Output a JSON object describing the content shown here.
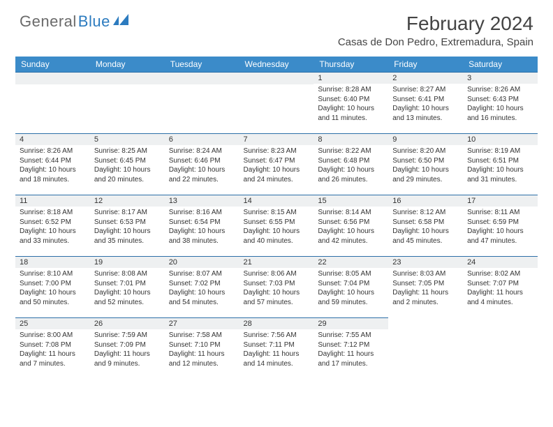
{
  "logo": {
    "part1": "General",
    "part2": "Blue"
  },
  "title": "February 2024",
  "location": "Casas de Don Pedro, Extremadura, Spain",
  "colors": {
    "header_bg": "#3b8bc9",
    "header_text": "#ffffff",
    "daynum_bg": "#eef0f1",
    "daynum_border": "#2c6fa8",
    "text": "#333333",
    "logo_gray": "#6a6a6a",
    "logo_blue": "#2c7bbf"
  },
  "weekdays": [
    "Sunday",
    "Monday",
    "Tuesday",
    "Wednesday",
    "Thursday",
    "Friday",
    "Saturday"
  ],
  "leading_blanks": 4,
  "days": [
    {
      "n": 1,
      "sunrise": "8:28 AM",
      "sunset": "6:40 PM",
      "daylight": "10 hours and 11 minutes."
    },
    {
      "n": 2,
      "sunrise": "8:27 AM",
      "sunset": "6:41 PM",
      "daylight": "10 hours and 13 minutes."
    },
    {
      "n": 3,
      "sunrise": "8:26 AM",
      "sunset": "6:43 PM",
      "daylight": "10 hours and 16 minutes."
    },
    {
      "n": 4,
      "sunrise": "8:26 AM",
      "sunset": "6:44 PM",
      "daylight": "10 hours and 18 minutes."
    },
    {
      "n": 5,
      "sunrise": "8:25 AM",
      "sunset": "6:45 PM",
      "daylight": "10 hours and 20 minutes."
    },
    {
      "n": 6,
      "sunrise": "8:24 AM",
      "sunset": "6:46 PM",
      "daylight": "10 hours and 22 minutes."
    },
    {
      "n": 7,
      "sunrise": "8:23 AM",
      "sunset": "6:47 PM",
      "daylight": "10 hours and 24 minutes."
    },
    {
      "n": 8,
      "sunrise": "8:22 AM",
      "sunset": "6:48 PM",
      "daylight": "10 hours and 26 minutes."
    },
    {
      "n": 9,
      "sunrise": "8:20 AM",
      "sunset": "6:50 PM",
      "daylight": "10 hours and 29 minutes."
    },
    {
      "n": 10,
      "sunrise": "8:19 AM",
      "sunset": "6:51 PM",
      "daylight": "10 hours and 31 minutes."
    },
    {
      "n": 11,
      "sunrise": "8:18 AM",
      "sunset": "6:52 PM",
      "daylight": "10 hours and 33 minutes."
    },
    {
      "n": 12,
      "sunrise": "8:17 AM",
      "sunset": "6:53 PM",
      "daylight": "10 hours and 35 minutes."
    },
    {
      "n": 13,
      "sunrise": "8:16 AM",
      "sunset": "6:54 PM",
      "daylight": "10 hours and 38 minutes."
    },
    {
      "n": 14,
      "sunrise": "8:15 AM",
      "sunset": "6:55 PM",
      "daylight": "10 hours and 40 minutes."
    },
    {
      "n": 15,
      "sunrise": "8:14 AM",
      "sunset": "6:56 PM",
      "daylight": "10 hours and 42 minutes."
    },
    {
      "n": 16,
      "sunrise": "8:12 AM",
      "sunset": "6:58 PM",
      "daylight": "10 hours and 45 minutes."
    },
    {
      "n": 17,
      "sunrise": "8:11 AM",
      "sunset": "6:59 PM",
      "daylight": "10 hours and 47 minutes."
    },
    {
      "n": 18,
      "sunrise": "8:10 AM",
      "sunset": "7:00 PM",
      "daylight": "10 hours and 50 minutes."
    },
    {
      "n": 19,
      "sunrise": "8:08 AM",
      "sunset": "7:01 PM",
      "daylight": "10 hours and 52 minutes."
    },
    {
      "n": 20,
      "sunrise": "8:07 AM",
      "sunset": "7:02 PM",
      "daylight": "10 hours and 54 minutes."
    },
    {
      "n": 21,
      "sunrise": "8:06 AM",
      "sunset": "7:03 PM",
      "daylight": "10 hours and 57 minutes."
    },
    {
      "n": 22,
      "sunrise": "8:05 AM",
      "sunset": "7:04 PM",
      "daylight": "10 hours and 59 minutes."
    },
    {
      "n": 23,
      "sunrise": "8:03 AM",
      "sunset": "7:05 PM",
      "daylight": "11 hours and 2 minutes."
    },
    {
      "n": 24,
      "sunrise": "8:02 AM",
      "sunset": "7:07 PM",
      "daylight": "11 hours and 4 minutes."
    },
    {
      "n": 25,
      "sunrise": "8:00 AM",
      "sunset": "7:08 PM",
      "daylight": "11 hours and 7 minutes."
    },
    {
      "n": 26,
      "sunrise": "7:59 AM",
      "sunset": "7:09 PM",
      "daylight": "11 hours and 9 minutes."
    },
    {
      "n": 27,
      "sunrise": "7:58 AM",
      "sunset": "7:10 PM",
      "daylight": "11 hours and 12 minutes."
    },
    {
      "n": 28,
      "sunrise": "7:56 AM",
      "sunset": "7:11 PM",
      "daylight": "11 hours and 14 minutes."
    },
    {
      "n": 29,
      "sunrise": "7:55 AM",
      "sunset": "7:12 PM",
      "daylight": "11 hours and 17 minutes."
    }
  ],
  "labels": {
    "sunrise": "Sunrise:",
    "sunset": "Sunset:",
    "daylight": "Daylight:"
  }
}
